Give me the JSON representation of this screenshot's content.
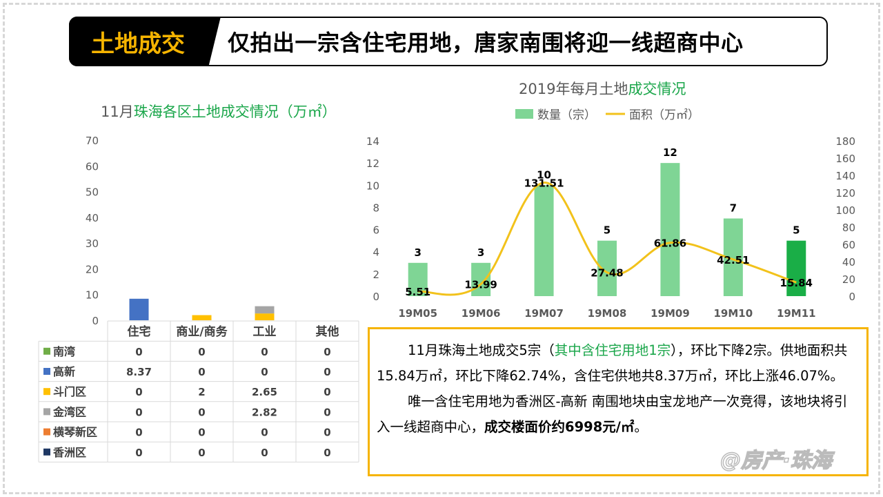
{
  "header": {
    "tag": "土地成交",
    "headline": "仅拍出一宗含住宅用地，唐家南围将迎一线超商中心"
  },
  "left_chart": {
    "title_prefix": "11月",
    "title_highlight": "珠海各区土地成交情况（万㎡）"
  },
  "right_chart": {
    "title_prefix": "2019年每月土地",
    "title_highlight": "成交情况"
  },
  "summary": {
    "p1_a": "11月珠海土地成交5宗（",
    "p1_b": "其中含住宅用地1宗",
    "p1_c": "），环比下降2宗。供地面积共15.84万㎡，环比下降62.74%，含住宅供地共8.37万㎡，环比上涨46.07%。",
    "p2_a": "唯一含住宅用地为香洲区-高新 南围地块由宝龙地产一次竞得，该地块将引入一线超商中心，",
    "p2_b": "成交楼面价约6998元/㎡",
    "p2_c": "。"
  },
  "watermark": "@房产·珠海",
  "colors": {
    "accent_yellow": "#f6b400",
    "green_text": "#1aa64a",
    "bar_green": "#7fd595",
    "bar_green_dark": "#1aae47",
    "line_yellow": "#f2c21b"
  },
  "chart_data": [
    {
      "type": "bar",
      "stacked": true,
      "categories": [
        "住宅",
        "商业/商务",
        "工业",
        "其他"
      ],
      "series": [
        {
          "name": "南湾",
          "color": "#70ad47",
          "values": [
            0,
            0,
            0,
            0
          ]
        },
        {
          "name": "高新",
          "color": "#4472c4",
          "values": [
            8.37,
            0,
            0,
            0
          ]
        },
        {
          "name": "斗门区",
          "color": "#ffc000",
          "values": [
            0,
            2,
            2.65,
            0
          ]
        },
        {
          "name": "金湾区",
          "color": "#a5a5a5",
          "values": [
            0,
            0,
            2.82,
            0
          ]
        },
        {
          "name": "横琴新区",
          "color": "#ed7d31",
          "values": [
            0,
            0,
            0,
            0
          ]
        },
        {
          "name": "香洲区",
          "color": "#1f3864",
          "values": [
            0,
            0,
            0,
            0
          ]
        }
      ],
      "ylim": [
        0,
        70
      ],
      "yticks": [
        0,
        10,
        20,
        30,
        40,
        50,
        60,
        70
      ],
      "table_labels": [
        "0",
        "0",
        "0",
        "0",
        "8.37",
        "0",
        "0",
        "0",
        "0",
        "2",
        "2.65",
        "0",
        "0",
        "0",
        "2.82",
        "0",
        "0",
        "0",
        "0",
        "0",
        "0",
        "0",
        "0",
        "0"
      ]
    },
    {
      "type": "bar+line",
      "categories": [
        "19M05",
        "19M06",
        "19M07",
        "19M08",
        "19M09",
        "19M10",
        "19M11"
      ],
      "legend": [
        "数量（宗）",
        "面积（万㎡）"
      ],
      "bars": {
        "name": "数量（宗）",
        "values": [
          3,
          3,
          10,
          5,
          12,
          7,
          5
        ],
        "labels": [
          "3",
          "3",
          "10",
          "5",
          "12",
          "7",
          "5"
        ]
      },
      "line": {
        "name": "面积（万㎡）",
        "values": [
          5.51,
          13.99,
          131.51,
          27.48,
          61.86,
          42.51,
          15.84
        ],
        "labels": [
          "5.51",
          "13.99",
          "131.51",
          "27.48",
          "61.86",
          "42.51",
          "15.84"
        ]
      },
      "ylim_left": [
        0,
        14
      ],
      "yticks_left": [
        0,
        2,
        4,
        6,
        8,
        10,
        12,
        14
      ],
      "ylim_right": [
        0,
        180
      ],
      "yticks_right": [
        0,
        20,
        40,
        60,
        80,
        100,
        120,
        140,
        160,
        180
      ]
    }
  ]
}
